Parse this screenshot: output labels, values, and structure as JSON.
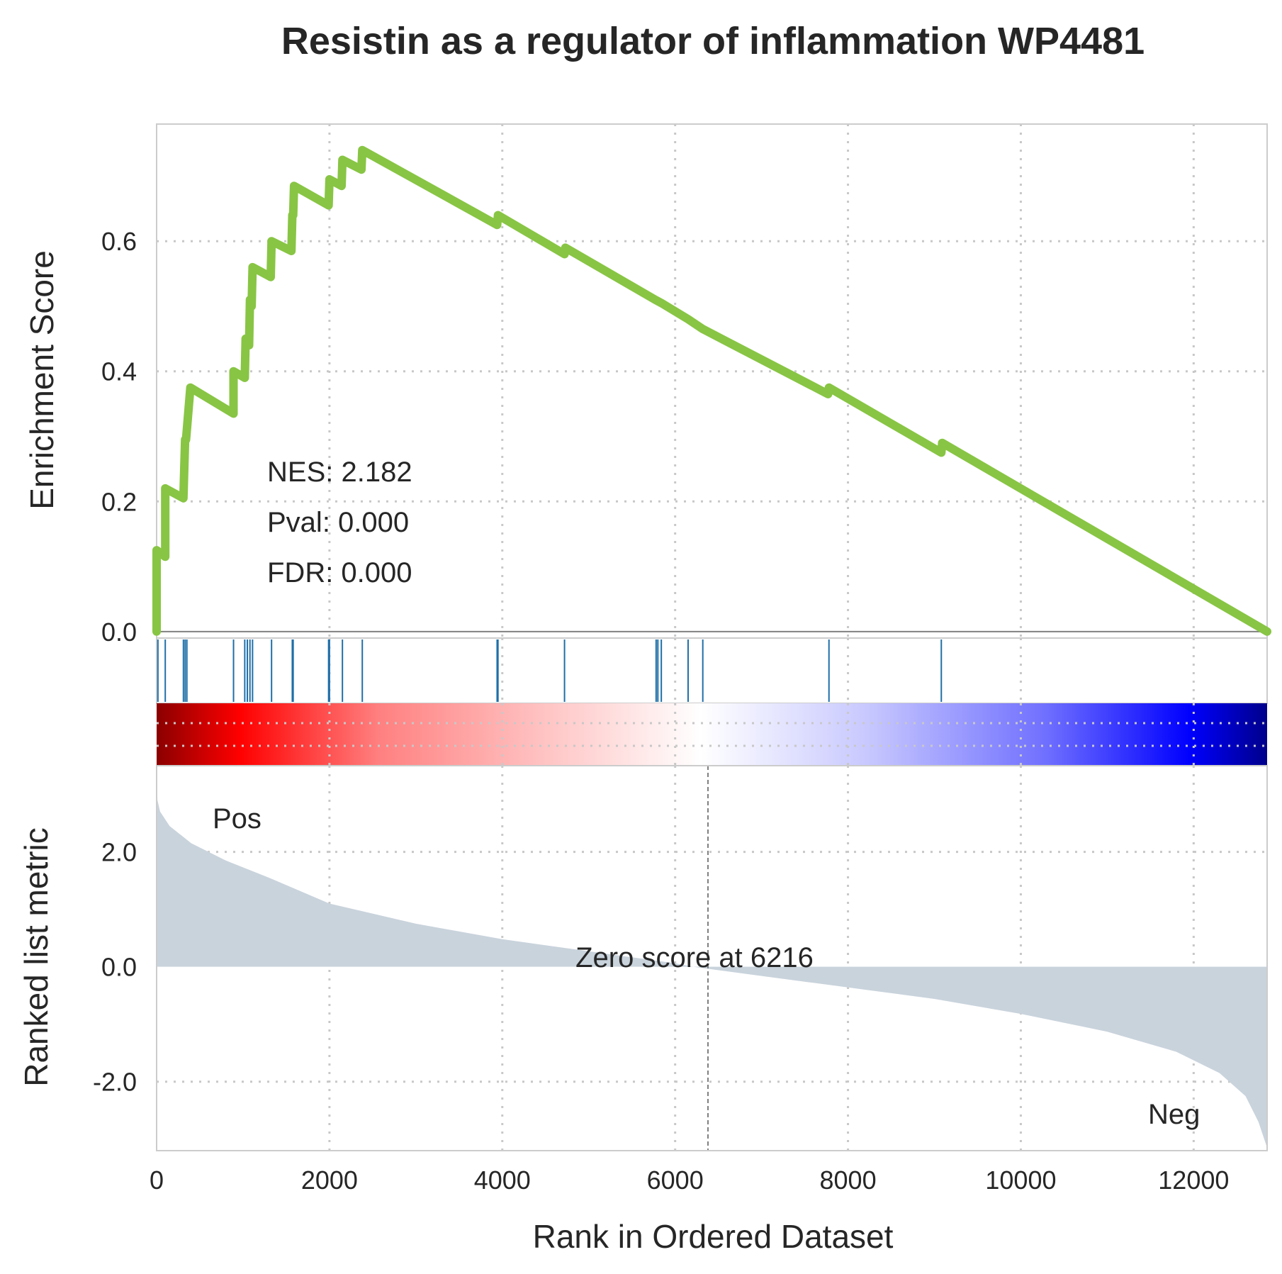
{
  "chart_data": {
    "type": "line",
    "title": "Resistin as a regulator of inflammation WP4481",
    "xlabel": "Rank in Ordered Dataset",
    "xlim": [
      0,
      12850
    ],
    "x_ticks": [
      0,
      2000,
      4000,
      6000,
      8000,
      10000,
      12000
    ],
    "x_tick_labels": [
      "0",
      "2000",
      "4000",
      "6000",
      "8000",
      "10000",
      "12000"
    ],
    "grid": true,
    "colors": {
      "es_line": "#88c544",
      "hits": "#1f6fa8",
      "metric_fill": "#c9d3dc",
      "pos_label": "#ff0000",
      "neg_label": "#0000ff"
    },
    "enrichment_plot": {
      "ylabel": "Enrichment Score",
      "ylim": [
        -0.01,
        0.78
      ],
      "y_ticks": [
        0.0,
        0.2,
        0.4,
        0.6
      ],
      "y_tick_labels": [
        "0.0",
        "0.2",
        "0.4",
        "0.6"
      ],
      "points": [
        [
          0,
          0.0
        ],
        [
          0,
          0.125
        ],
        [
          100,
          0.115
        ],
        [
          100,
          0.22
        ],
        [
          310,
          0.205
        ],
        [
          330,
          0.295
        ],
        [
          340,
          0.295
        ],
        [
          390,
          0.375
        ],
        [
          890,
          0.335
        ],
        [
          890,
          0.4
        ],
        [
          1020,
          0.39
        ],
        [
          1030,
          0.45
        ],
        [
          1070,
          0.44
        ],
        [
          1080,
          0.51
        ],
        [
          1100,
          0.5
        ],
        [
          1110,
          0.56
        ],
        [
          1320,
          0.545
        ],
        [
          1330,
          0.6
        ],
        [
          1560,
          0.585
        ],
        [
          1570,
          0.64
        ],
        [
          1580,
          0.64
        ],
        [
          1590,
          0.685
        ],
        [
          1990,
          0.655
        ],
        [
          2000,
          0.695
        ],
        [
          2140,
          0.685
        ],
        [
          2150,
          0.725
        ],
        [
          2370,
          0.71
        ],
        [
          2380,
          0.74
        ],
        [
          3940,
          0.625
        ],
        [
          3950,
          0.64
        ],
        [
          4720,
          0.58
        ],
        [
          4730,
          0.59
        ],
        [
          5770,
          0.51
        ],
        [
          5840,
          0.505
        ],
        [
          6150,
          0.48
        ],
        [
          6320,
          0.465
        ],
        [
          7770,
          0.365
        ],
        [
          7780,
          0.375
        ],
        [
          9080,
          0.275
        ],
        [
          9090,
          0.29
        ],
        [
          12850,
          0.0
        ]
      ],
      "annotations": [
        "NES: 2.182",
        "Pval: 0.000",
        "FDR: 0.000"
      ]
    },
    "hit_positions": [
      15,
      100,
      310,
      330,
      350,
      890,
      1020,
      1050,
      1080,
      1110,
      1330,
      1570,
      1580,
      1990,
      2000,
      2150,
      2380,
      3940,
      3950,
      4720,
      5780,
      5800,
      5840,
      6150,
      6320,
      7780,
      9080
    ],
    "ranked_metric_plot": {
      "ylabel": "Ranked list metric",
      "ylim": [
        -3.2,
        3.5
      ],
      "y_ticks": [
        2.0,
        0.0,
        -2.0
      ],
      "y_tick_labels": [
        "2.0",
        "0.0",
        "-2.0"
      ],
      "profile": [
        [
          0,
          3.3
        ],
        [
          10,
          2.9
        ],
        [
          40,
          2.7
        ],
        [
          150,
          2.45
        ],
        [
          400,
          2.15
        ],
        [
          800,
          1.85
        ],
        [
          1300,
          1.55
        ],
        [
          2000,
          1.1
        ],
        [
          3000,
          0.75
        ],
        [
          4000,
          0.48
        ],
        [
          5000,
          0.27
        ],
        [
          6000,
          0.06
        ],
        [
          6216,
          0.0
        ],
        [
          7000,
          -0.16
        ],
        [
          8000,
          -0.36
        ],
        [
          9000,
          -0.56
        ],
        [
          10000,
          -0.82
        ],
        [
          11000,
          -1.13
        ],
        [
          11800,
          -1.48
        ],
        [
          12300,
          -1.85
        ],
        [
          12600,
          -2.25
        ],
        [
          12750,
          -2.7
        ],
        [
          12850,
          -3.15
        ]
      ],
      "zero_cross_rank": 6216,
      "zero_label": "Zero score at 6216",
      "pos_label": "Pos",
      "neg_label": "Neg"
    }
  }
}
